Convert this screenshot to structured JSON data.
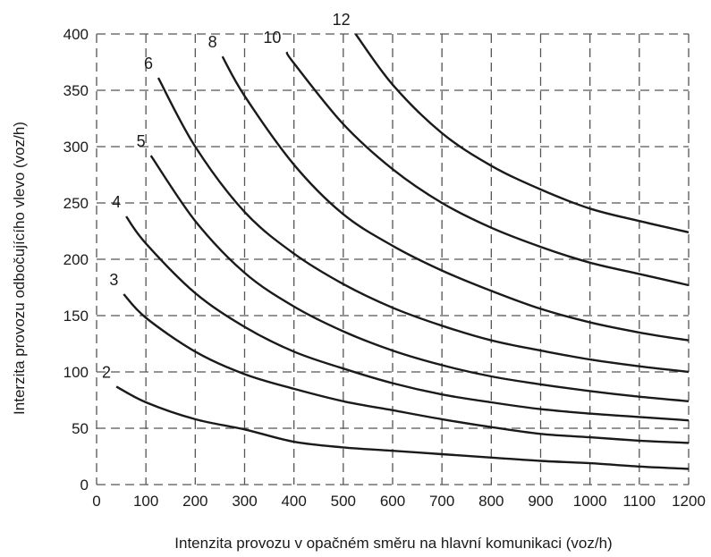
{
  "chart_data": {
    "type": "line",
    "title": "",
    "xlabel": "Intenzita provozu v opačném směru na hlavní komunikaci (voz/h)",
    "ylabel": "Interzita provozu odbočujícího  vlevo (voz/h)",
    "xlim": [
      0,
      1200
    ],
    "ylim": [
      0,
      400
    ],
    "x_ticks": [
      0,
      100,
      200,
      300,
      400,
      500,
      600,
      700,
      800,
      900,
      1000,
      1100,
      1200
    ],
    "x_tick_labels": [
      "0",
      "100",
      "200",
      "300",
      "400",
      "500",
      "600",
      "700",
      "800",
      "900",
      "1000",
      "1100",
      "1200"
    ],
    "y_ticks": [
      0,
      50,
      100,
      150,
      200,
      250,
      300,
      350,
      400
    ],
    "y_tick_labels": [
      "0",
      "50",
      "100",
      "150",
      "200",
      "250",
      "300",
      "350",
      "400"
    ],
    "grid": true,
    "series": [
      {
        "name": "2",
        "x": [
          40,
          100,
          200,
          300,
          400,
          500,
          600,
          700,
          800,
          900,
          1000,
          1100,
          1200
        ],
        "y": [
          87,
          73,
          58,
          49,
          38,
          33,
          30,
          27,
          24,
          21,
          19,
          16,
          14
        ]
      },
      {
        "name": "3",
        "x": [
          55,
          100,
          200,
          300,
          400,
          500,
          600,
          700,
          800,
          900,
          1000,
          1100,
          1200
        ],
        "y": [
          169,
          148,
          118,
          98,
          85,
          74,
          66,
          58,
          51,
          45,
          42,
          39,
          37
        ]
      },
      {
        "name": "4",
        "x": [
          60,
          100,
          200,
          300,
          400,
          500,
          600,
          700,
          800,
          900,
          1000,
          1100,
          1200
        ],
        "y": [
          238,
          214,
          170,
          140,
          118,
          103,
          90,
          80,
          73,
          67,
          63,
          60,
          57
        ]
      },
      {
        "name": "5",
        "x": [
          110,
          200,
          300,
          400,
          500,
          600,
          700,
          800,
          900,
          1000,
          1100,
          1200
        ],
        "y": [
          292,
          234,
          188,
          158,
          136,
          119,
          106,
          96,
          89,
          83,
          78,
          74
        ]
      },
      {
        "name": "6",
        "x": [
          125,
          200,
          300,
          400,
          500,
          600,
          700,
          800,
          900,
          1000,
          1100,
          1200
        ],
        "y": [
          361,
          300,
          242,
          205,
          178,
          157,
          141,
          128,
          119,
          111,
          105,
          100
        ]
      },
      {
        "name": "8",
        "x": [
          255,
          300,
          400,
          500,
          600,
          700,
          800,
          900,
          1000,
          1100,
          1200
        ],
        "y": [
          380,
          345,
          284,
          240,
          212,
          190,
          172,
          156,
          144,
          135,
          128
        ]
      },
      {
        "name": "10",
        "x": [
          385,
          400,
          500,
          600,
          700,
          800,
          900,
          1000,
          1100,
          1200
        ],
        "y": [
          384,
          374,
          320,
          280,
          250,
          228,
          211,
          197,
          187,
          177
        ]
      },
      {
        "name": "12",
        "x": [
          525,
          600,
          700,
          800,
          900,
          1000,
          1100,
          1200
        ],
        "y": [
          400,
          355,
          312,
          283,
          262,
          245,
          234,
          224
        ]
      }
    ]
  }
}
